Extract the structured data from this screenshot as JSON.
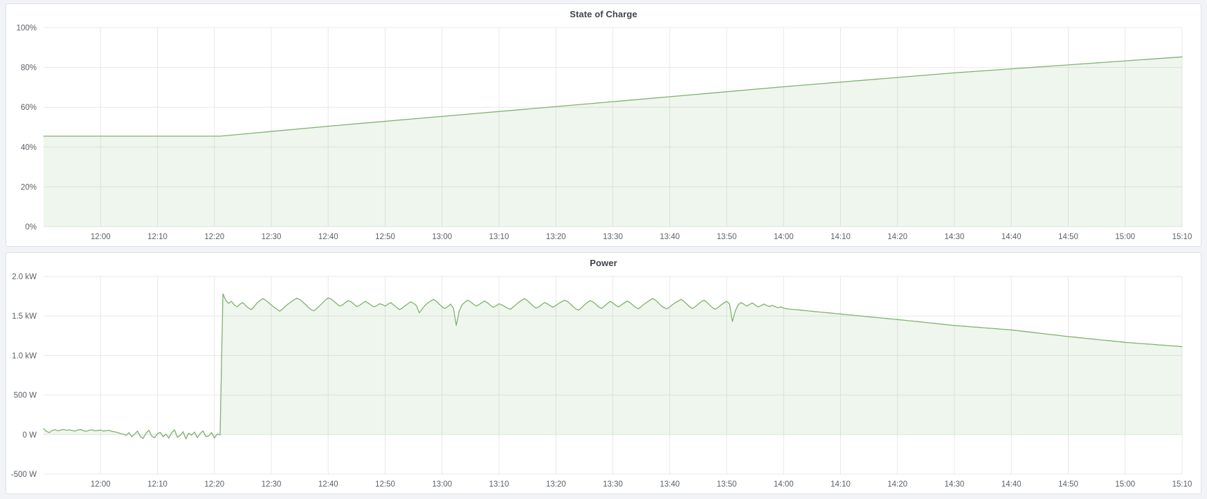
{
  "theme": {
    "page_background": "#f1f3f6",
    "panel_background": "#ffffff",
    "panel_border": "#dde0e5",
    "grid_color": "#e8e8e8",
    "axis_label_color": "#5c6066",
    "title_color": "#3f434a",
    "series_green": "#7eb26d",
    "fill_opacity": 0.12
  },
  "chart_data": [
    {
      "type": "area",
      "title": "State of Charge",
      "legend": "none",
      "grid": true,
      "x_axis": {
        "start": "11:50",
        "end": "15:10",
        "tick_labels": [
          "12:00",
          "12:10",
          "12:20",
          "12:30",
          "12:40",
          "12:50",
          "13:00",
          "13:10",
          "13:20",
          "13:30",
          "13:40",
          "13:50",
          "14:00",
          "14:10",
          "14:20",
          "14:30",
          "14:40",
          "14:50",
          "15:00",
          "15:10"
        ]
      },
      "y_axis": {
        "min": 0,
        "max": 100,
        "ticks": [
          {
            "value": 0,
            "label": "0%"
          },
          {
            "value": 20,
            "label": "20%"
          },
          {
            "value": 40,
            "label": "40%"
          },
          {
            "value": 60,
            "label": "60%"
          },
          {
            "value": 80,
            "label": "80%"
          },
          {
            "value": 100,
            "label": "100%"
          }
        ]
      },
      "fill_baseline": 0,
      "series": [
        {
          "name": "State of Charge",
          "color": "#7eb26d",
          "points": [
            [
              "11:50",
              45.5
            ],
            [
              "12:21",
              45.5
            ],
            [
              "12:40",
              50.5
            ],
            [
              "13:00",
              55.4
            ],
            [
              "13:30",
              62.8
            ],
            [
              "14:00",
              70.3
            ],
            [
              "14:30",
              77.3
            ],
            [
              "15:10",
              85.3
            ]
          ]
        }
      ]
    },
    {
      "type": "area",
      "title": "Power",
      "legend": "none",
      "grid": true,
      "x_axis": {
        "start": "11:50",
        "end": "15:10",
        "tick_labels": [
          "12:00",
          "12:10",
          "12:20",
          "12:30",
          "12:40",
          "12:50",
          "13:00",
          "13:10",
          "13:20",
          "13:30",
          "13:40",
          "13:50",
          "14:00",
          "14:10",
          "14:20",
          "14:30",
          "14:40",
          "14:50",
          "15:00",
          "15:10"
        ]
      },
      "y_axis": {
        "min": -500,
        "max": 2000,
        "ticks": [
          {
            "value": -500,
            "label": "-500 W"
          },
          {
            "value": 0,
            "label": "0 W"
          },
          {
            "value": 500,
            "label": "500 W"
          },
          {
            "value": 1000,
            "label": "1.0 kW"
          },
          {
            "value": 1500,
            "label": "1.5 kW"
          },
          {
            "value": 2000,
            "label": "2.0 kW"
          }
        ]
      },
      "fill_baseline": 0,
      "series": [
        {
          "name": "Power",
          "color": "#7eb26d",
          "sampled": {
            "start": "11:50",
            "step_min": 0.5
          },
          "values_w": [
            75,
            40,
            25,
            52,
            62,
            48,
            58,
            65,
            55,
            60,
            52,
            45,
            58,
            64,
            50,
            42,
            55,
            60,
            48,
            52,
            58,
            45,
            50,
            55,
            40,
            35,
            25,
            15,
            5,
            -10,
            25,
            -30,
            8,
            45,
            -25,
            -50,
            20,
            55,
            -20,
            -40,
            12,
            30,
            -28,
            6,
            -45,
            25,
            60,
            -35,
            -12,
            38,
            -55,
            18,
            -8,
            32,
            -40,
            12,
            48,
            -25,
            -18,
            26,
            -45,
            8,
            -5,
            1780,
            1700,
            1660,
            1685,
            1640,
            1615,
            1650,
            1670,
            1630,
            1600,
            1580,
            1620,
            1665,
            1695,
            1720,
            1700,
            1670,
            1640,
            1610,
            1585,
            1560,
            1590,
            1625,
            1655,
            1680,
            1705,
            1725,
            1710,
            1680,
            1645,
            1610,
            1580,
            1565,
            1595,
            1630,
            1665,
            1700,
            1730,
            1715,
            1685,
            1655,
            1625,
            1640,
            1670,
            1695,
            1680,
            1650,
            1620,
            1635,
            1660,
            1685,
            1665,
            1640,
            1615,
            1630,
            1655,
            1645,
            1625,
            1650,
            1670,
            1640,
            1610,
            1580,
            1600,
            1630,
            1655,
            1680,
            1660,
            1630,
            1540,
            1590,
            1635,
            1665,
            1690,
            1710,
            1685,
            1650,
            1615,
            1595,
            1620,
            1650,
            1600,
            1380,
            1560,
            1640,
            1675,
            1700,
            1680,
            1650,
            1625,
            1645,
            1670,
            1690,
            1665,
            1635,
            1610,
            1630,
            1655,
            1640,
            1620,
            1600,
            1585,
            1615,
            1645,
            1675,
            1700,
            1720,
            1695,
            1660,
            1625,
            1600,
            1615,
            1645,
            1670,
            1655,
            1630,
            1610,
            1635,
            1660,
            1680,
            1700,
            1685,
            1655,
            1620,
            1590,
            1575,
            1605,
            1640,
            1670,
            1695,
            1680,
            1650,
            1615,
            1595,
            1625,
            1655,
            1685,
            1665,
            1635,
            1615,
            1640,
            1665,
            1690,
            1670,
            1640,
            1610,
            1590,
            1620,
            1650,
            1675,
            1700,
            1720,
            1700,
            1665,
            1630,
            1605,
            1590,
            1615,
            1645,
            1670,
            1690,
            1710,
            1685,
            1650,
            1615,
            1595,
            1620,
            1650,
            1680,
            1700,
            1675,
            1640,
            1605,
            1585,
            1610,
            1640,
            1665,
            1685,
            1655,
            1430,
            1560,
            1640,
            1670,
            1650,
            1625,
            1645,
            1665,
            1640,
            1615,
            1630,
            1650,
            1635,
            1620,
            1635,
            1620,
            1605,
            1615,
            1600,
            1591,
            1588,
            1584,
            1581,
            1577,
            1574,
            1570,
            1567,
            1563,
            1560,
            1556,
            1553,
            1549,
            1546,
            1542,
            1539,
            1535,
            1532,
            1528,
            1525,
            1521,
            1518,
            1514,
            1511,
            1507,
            1504,
            1500,
            1497,
            1493,
            1490,
            1486,
            1483,
            1479,
            1476,
            1472,
            1469,
            1465,
            1462,
            1458,
            1455,
            1451,
            1448,
            1444,
            1440,
            1437,
            1433,
            1429,
            1426,
            1422,
            1418,
            1414,
            1410,
            1407,
            1403,
            1399,
            1395,
            1391,
            1388,
            1384,
            1380,
            1377,
            1374,
            1372,
            1369,
            1366,
            1363,
            1360,
            1358,
            1355,
            1352,
            1349,
            1346,
            1344,
            1341,
            1338,
            1335,
            1332,
            1330,
            1327,
            1324,
            1320,
            1316,
            1311,
            1307,
            1303,
            1299,
            1295,
            1290,
            1286,
            1282,
            1278,
            1274,
            1269,
            1265,
            1261,
            1257,
            1253,
            1248,
            1244,
            1240,
            1236,
            1233,
            1229,
            1225,
            1222,
            1218,
            1214,
            1211,
            1207,
            1203,
            1199,
            1196,
            1192,
            1189,
            1185,
            1181,
            1178,
            1174,
            1171,
            1167,
            1164,
            1162,
            1159,
            1156,
            1153,
            1151,
            1148,
            1145,
            1143,
            1140,
            1137,
            1134,
            1132,
            1129,
            1126,
            1123,
            1121,
            1118,
            1115,
            1112
          ]
        }
      ]
    }
  ]
}
